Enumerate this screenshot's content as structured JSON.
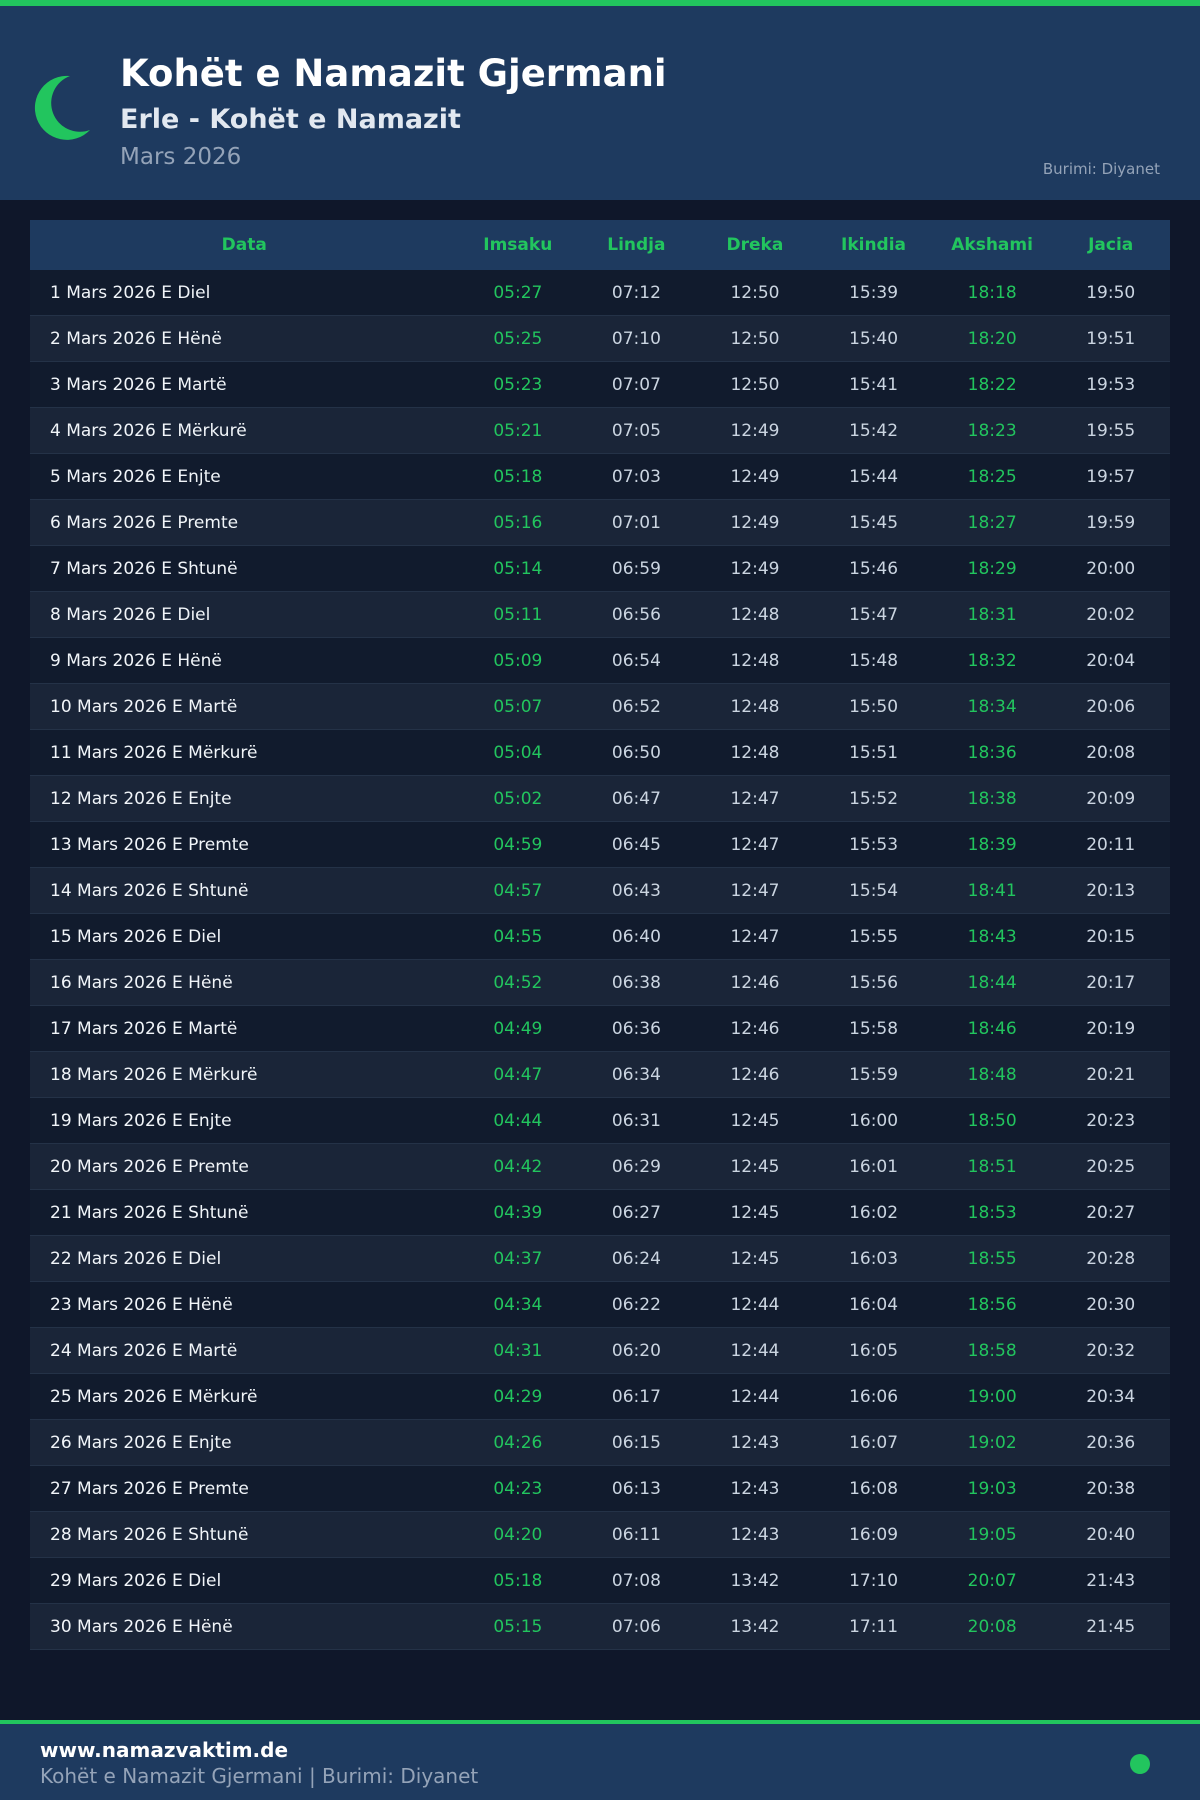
{
  "header": {
    "title": "Kohët e Namazit Gjermani",
    "subtitle": "Erle - Kohët e Namazit",
    "month": "Mars 2026",
    "source": "Burimi: Diyanet",
    "icon": "crescent-moon-icon"
  },
  "colors": {
    "accent": "#22c55e",
    "header_bg": "#1e3a5f",
    "page_bg": "#0f172a"
  },
  "table": {
    "columns": [
      "Data",
      "Imsaku",
      "Lindja",
      "Dreka",
      "Ikindia",
      "Akshami",
      "Jacia"
    ],
    "rows": [
      [
        "1 Mars 2026 E Diel",
        "05:27",
        "07:12",
        "12:50",
        "15:39",
        "18:18",
        "19:50"
      ],
      [
        "2 Mars 2026 E Hënë",
        "05:25",
        "07:10",
        "12:50",
        "15:40",
        "18:20",
        "19:51"
      ],
      [
        "3 Mars 2026 E Martë",
        "05:23",
        "07:07",
        "12:50",
        "15:41",
        "18:22",
        "19:53"
      ],
      [
        "4 Mars 2026 E Mërkurë",
        "05:21",
        "07:05",
        "12:49",
        "15:42",
        "18:23",
        "19:55"
      ],
      [
        "5 Mars 2026 E Enjte",
        "05:18",
        "07:03",
        "12:49",
        "15:44",
        "18:25",
        "19:57"
      ],
      [
        "6 Mars 2026 E Premte",
        "05:16",
        "07:01",
        "12:49",
        "15:45",
        "18:27",
        "19:59"
      ],
      [
        "7 Mars 2026 E Shtunë",
        "05:14",
        "06:59",
        "12:49",
        "15:46",
        "18:29",
        "20:00"
      ],
      [
        "8 Mars 2026 E Diel",
        "05:11",
        "06:56",
        "12:48",
        "15:47",
        "18:31",
        "20:02"
      ],
      [
        "9 Mars 2026 E Hënë",
        "05:09",
        "06:54",
        "12:48",
        "15:48",
        "18:32",
        "20:04"
      ],
      [
        "10 Mars 2026 E Martë",
        "05:07",
        "06:52",
        "12:48",
        "15:50",
        "18:34",
        "20:06"
      ],
      [
        "11 Mars 2026 E Mërkurë",
        "05:04",
        "06:50",
        "12:48",
        "15:51",
        "18:36",
        "20:08"
      ],
      [
        "12 Mars 2026 E Enjte",
        "05:02",
        "06:47",
        "12:47",
        "15:52",
        "18:38",
        "20:09"
      ],
      [
        "13 Mars 2026 E Premte",
        "04:59",
        "06:45",
        "12:47",
        "15:53",
        "18:39",
        "20:11"
      ],
      [
        "14 Mars 2026 E Shtunë",
        "04:57",
        "06:43",
        "12:47",
        "15:54",
        "18:41",
        "20:13"
      ],
      [
        "15 Mars 2026 E Diel",
        "04:55",
        "06:40",
        "12:47",
        "15:55",
        "18:43",
        "20:15"
      ],
      [
        "16 Mars 2026 E Hënë",
        "04:52",
        "06:38",
        "12:46",
        "15:56",
        "18:44",
        "20:17"
      ],
      [
        "17 Mars 2026 E Martë",
        "04:49",
        "06:36",
        "12:46",
        "15:58",
        "18:46",
        "20:19"
      ],
      [
        "18 Mars 2026 E Mërkurë",
        "04:47",
        "06:34",
        "12:46",
        "15:59",
        "18:48",
        "20:21"
      ],
      [
        "19 Mars 2026 E Enjte",
        "04:44",
        "06:31",
        "12:45",
        "16:00",
        "18:50",
        "20:23"
      ],
      [
        "20 Mars 2026 E Premte",
        "04:42",
        "06:29",
        "12:45",
        "16:01",
        "18:51",
        "20:25"
      ],
      [
        "21 Mars 2026 E Shtunë",
        "04:39",
        "06:27",
        "12:45",
        "16:02",
        "18:53",
        "20:27"
      ],
      [
        "22 Mars 2026 E Diel",
        "04:37",
        "06:24",
        "12:45",
        "16:03",
        "18:55",
        "20:28"
      ],
      [
        "23 Mars 2026 E Hënë",
        "04:34",
        "06:22",
        "12:44",
        "16:04",
        "18:56",
        "20:30"
      ],
      [
        "24 Mars 2026 E Martë",
        "04:31",
        "06:20",
        "12:44",
        "16:05",
        "18:58",
        "20:32"
      ],
      [
        "25 Mars 2026 E Mërkurë",
        "04:29",
        "06:17",
        "12:44",
        "16:06",
        "19:00",
        "20:34"
      ],
      [
        "26 Mars 2026 E Enjte",
        "04:26",
        "06:15",
        "12:43",
        "16:07",
        "19:02",
        "20:36"
      ],
      [
        "27 Mars 2026 E Premte",
        "04:23",
        "06:13",
        "12:43",
        "16:08",
        "19:03",
        "20:38"
      ],
      [
        "28 Mars 2026 E Shtunë",
        "04:20",
        "06:11",
        "12:43",
        "16:09",
        "19:05",
        "20:40"
      ],
      [
        "29 Mars 2026 E Diel",
        "05:18",
        "07:08",
        "13:42",
        "17:10",
        "20:07",
        "21:43"
      ],
      [
        "30 Mars 2026 E Hënë",
        "05:15",
        "07:06",
        "13:42",
        "17:11",
        "20:08",
        "21:45"
      ]
    ]
  },
  "footer": {
    "site": "www.namazvaktim.de",
    "text": "Kohët e Namazit Gjermani | Burimi: Diyanet"
  }
}
